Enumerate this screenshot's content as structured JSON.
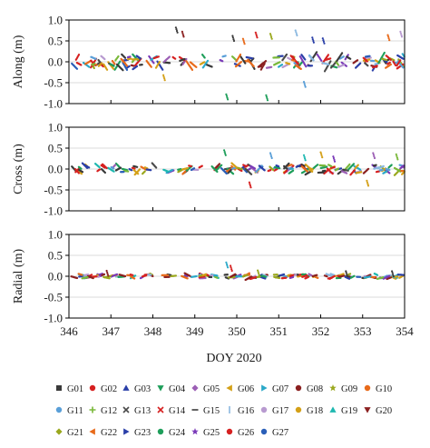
{
  "chart_data": [
    {
      "type": "scatter",
      "ylabel": "Along (m)",
      "ylim": [
        -1.0,
        1.0
      ],
      "yticks": [
        "1.0",
        "0.5",
        "0.0",
        "-0.5",
        "-1.0"
      ],
      "xlim": [
        346,
        354
      ],
      "grid": true,
      "noise": 0.14,
      "gaps": [
        349.0,
        352.95
      ],
      "outliers": [
        [
          348.55,
          0.82
        ],
        [
          348.7,
          0.72
        ],
        [
          349.9,
          0.62
        ],
        [
          350.15,
          0.55
        ],
        [
          350.45,
          0.7
        ],
        [
          350.8,
          0.67
        ],
        [
          351.4,
          0.75
        ],
        [
          351.8,
          0.58
        ],
        [
          352.05,
          0.56
        ],
        [
          353.6,
          0.64
        ],
        [
          353.9,
          0.72
        ],
        [
          349.75,
          -0.78
        ],
        [
          350.7,
          -0.8
        ],
        [
          351.6,
          -0.48
        ],
        [
          348.25,
          -0.32
        ]
      ]
    },
    {
      "type": "scatter",
      "ylabel": "Cross (m)",
      "ylim": [
        -1.0,
        1.0
      ],
      "yticks": [
        "1.0",
        "0.5",
        "0.0",
        "-0.5",
        "-1.0"
      ],
      "xlim": [
        346,
        354
      ],
      "grid": true,
      "noise": 0.09,
      "gaps": [
        349.0,
        352.95
      ],
      "outliers": [
        [
          349.7,
          0.45
        ],
        [
          350.8,
          0.38
        ],
        [
          352.0,
          0.4
        ],
        [
          352.3,
          0.3
        ],
        [
          353.25,
          0.38
        ],
        [
          353.8,
          0.35
        ],
        [
          351.6,
          0.33
        ],
        [
          350.3,
          -0.32
        ],
        [
          353.1,
          -0.28
        ]
      ]
    },
    {
      "type": "scatter",
      "ylabel": "Radial (m)",
      "ylim": [
        -1.0,
        1.0
      ],
      "yticks": [
        "1.0",
        "0.5",
        "0.0",
        "-0.5",
        "-1.0"
      ],
      "xlim": [
        346,
        354
      ],
      "grid": true,
      "noise": 0.045,
      "gaps": [
        349.0,
        352.95
      ],
      "outliers": [
        [
          349.75,
          0.33
        ],
        [
          349.85,
          0.25
        ],
        [
          350.5,
          0.14
        ],
        [
          352.6,
          0.12
        ],
        [
          346.9,
          0.13
        ],
        [
          353.7,
          0.12
        ]
      ]
    }
  ],
  "x_axis": {
    "label": "DOY 2020",
    "ticks": [
      "346",
      "347",
      "348",
      "349",
      "350",
      "351",
      "352",
      "353",
      "354"
    ]
  },
  "legend": [
    {
      "name": "G01",
      "marker": "square",
      "color": "#3a3a3a"
    },
    {
      "name": "G02",
      "marker": "circle",
      "color": "#d62020"
    },
    {
      "name": "G03",
      "marker": "triangle-up",
      "color": "#2a3fa8"
    },
    {
      "name": "G04",
      "marker": "triangle-down",
      "color": "#1e9e5a"
    },
    {
      "name": "G05",
      "marker": "diamond",
      "color": "#9c5fb5"
    },
    {
      "name": "G06",
      "marker": "triangle-left",
      "color": "#d4a017"
    },
    {
      "name": "G07",
      "marker": "triangle-right",
      "color": "#2aa8c8"
    },
    {
      "name": "G08",
      "marker": "circle",
      "color": "#8b2020"
    },
    {
      "name": "G09",
      "marker": "star",
      "color": "#9aa81e"
    },
    {
      "name": "G10",
      "marker": "circle",
      "color": "#e86a1a"
    },
    {
      "name": "G11",
      "marker": "circle",
      "color": "#5a9fd8"
    },
    {
      "name": "G12",
      "marker": "plus",
      "color": "#7ab83a"
    },
    {
      "name": "G13",
      "marker": "x",
      "color": "#4a4a4a"
    },
    {
      "name": "G14",
      "marker": "x",
      "color": "#d62020"
    },
    {
      "name": "G15",
      "marker": "dash",
      "color": "#3a3a3a"
    },
    {
      "name": "G16",
      "marker": "vline",
      "color": "#8ab8e0"
    },
    {
      "name": "G17",
      "marker": "circle",
      "color": "#b89ad0"
    },
    {
      "name": "G18",
      "marker": "circle",
      "color": "#d4a017"
    },
    {
      "name": "G19",
      "marker": "triangle-up",
      "color": "#1eb8b0"
    },
    {
      "name": "G20",
      "marker": "triangle-down",
      "color": "#8b2020"
    },
    {
      "name": "G21",
      "marker": "diamond",
      "color": "#9aa81e"
    },
    {
      "name": "G22",
      "marker": "triangle-left",
      "color": "#e86a1a"
    },
    {
      "name": "G23",
      "marker": "triangle-right",
      "color": "#2a3fa8"
    },
    {
      "name": "G24",
      "marker": "circle",
      "color": "#1e9e5a"
    },
    {
      "name": "G25",
      "marker": "star",
      "color": "#7a3ab8"
    },
    {
      "name": "G26",
      "marker": "circle",
      "color": "#d62020"
    },
    {
      "name": "G27",
      "marker": "circle",
      "color": "#2a5fb8"
    }
  ]
}
